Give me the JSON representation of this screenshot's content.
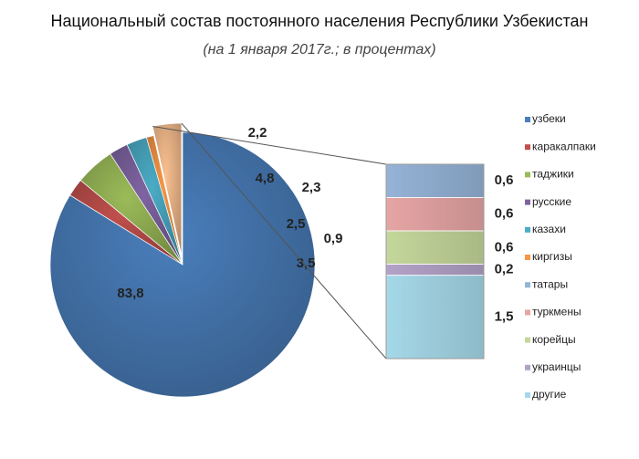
{
  "chart_data": {
    "type": "pie",
    "title": "Национальный состав постоянного населения Республики Узбекистан",
    "subtitle": "(на 1 января 2017г.; в процентах)",
    "pie": {
      "slices": [
        {
          "name": "узбеки",
          "value": 83.8,
          "label": "83,8",
          "color": "#4a7ebb"
        },
        {
          "name": "каракалпаки",
          "value": 2.2,
          "label": "2,2",
          "color": "#c0504d"
        },
        {
          "name": "таджики",
          "value": 4.8,
          "label": "4,8",
          "color": "#9bbb59"
        },
        {
          "name": "русские",
          "value": 2.3,
          "label": "2,3",
          "color": "#7f64a2"
        },
        {
          "name": "казахи",
          "value": 2.5,
          "label": "2,5",
          "color": "#4bacc6"
        },
        {
          "name": "киргизы",
          "value": 0.9,
          "label": "0,9",
          "color": "#f79646"
        },
        {
          "name": "",
          "value": 3.5,
          "label": "3,5",
          "color": "#fac090"
        }
      ]
    },
    "bar_of_pie": {
      "segments": [
        {
          "name": "татары",
          "value": 0.6,
          "label": "0,6",
          "color": "#95b3d7"
        },
        {
          "name": "туркмены",
          "value": 0.6,
          "label": "0,6",
          "color": "#e6a5a5"
        },
        {
          "name": "корейцы",
          "value": 0.6,
          "label": "0,6",
          "color": "#c4d79b"
        },
        {
          "name": "украинцы",
          "value": 0.2,
          "label": "0,2",
          "color": "#b3a2c7"
        },
        {
          "name": "другие",
          "value": 1.5,
          "label": "1,5",
          "color": "#a5d8e8"
        }
      ]
    },
    "legend": {
      "position": "right",
      "items": [
        {
          "name": "узбеки",
          "color": "#4a7ebb"
        },
        {
          "name": "каракалпаки",
          "color": "#c0504d"
        },
        {
          "name": "таджики",
          "color": "#9bbb59"
        },
        {
          "name": "русские",
          "color": "#7f64a2"
        },
        {
          "name": "казахи",
          "color": "#4bacc6"
        },
        {
          "name": "киргизы",
          "color": "#f79646"
        },
        {
          "name": "татары",
          "color": "#95b3d7"
        },
        {
          "name": "туркмены",
          "color": "#e6a5a5"
        },
        {
          "name": "корейцы",
          "color": "#c4d79b"
        },
        {
          "name": "украинцы",
          "color": "#b3a2c7"
        },
        {
          "name": "другие",
          "color": "#a5d8e8"
        }
      ]
    }
  }
}
